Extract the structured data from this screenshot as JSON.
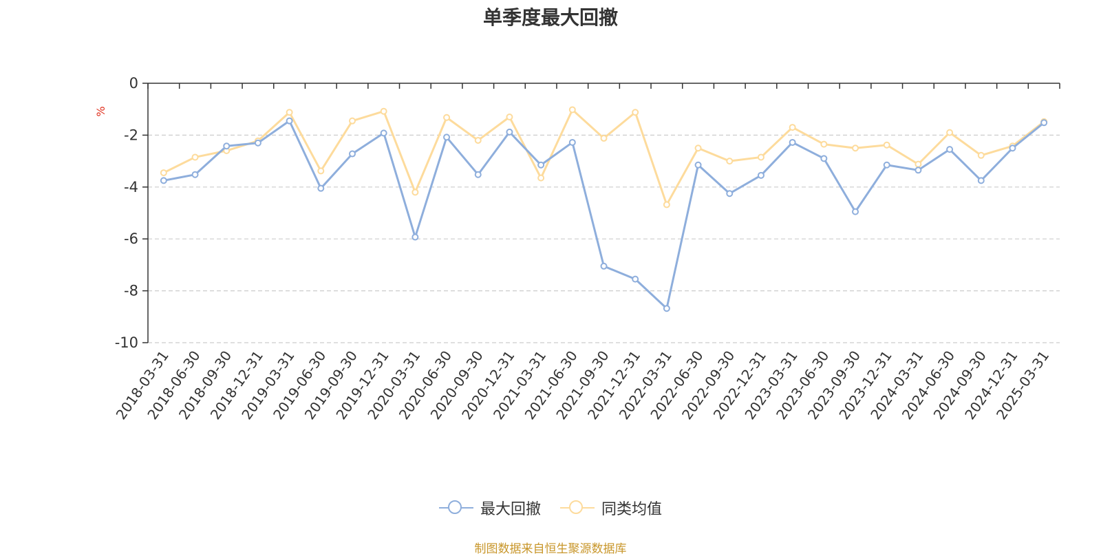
{
  "title": "单季度最大回撤",
  "source_note": "制图数据来自恒生聚源数据库",
  "colors": {
    "series1": "#8eaedc",
    "series2": "#fddb9c",
    "unit": "#e0301e",
    "source": "#c8962a"
  },
  "chart_data": {
    "type": "line",
    "title": "单季度最大回撤",
    "ylabel": "%",
    "ylim": [
      -10,
      0
    ],
    "yticks": [
      0,
      -2,
      -4,
      -6,
      -8,
      -10
    ],
    "grid": true,
    "legend_position": "bottom-center",
    "categories": [
      "2018-03-31",
      "2018-06-30",
      "2018-09-30",
      "2018-12-31",
      "2019-03-31",
      "2019-06-30",
      "2019-09-30",
      "2019-12-31",
      "2020-03-31",
      "2020-06-30",
      "2020-09-30",
      "2020-12-31",
      "2021-03-31",
      "2021-06-30",
      "2021-09-30",
      "2021-12-31",
      "2022-03-31",
      "2022-06-30",
      "2022-09-30",
      "2022-12-31",
      "2023-03-31",
      "2023-06-30",
      "2023-09-30",
      "2023-12-31",
      "2024-03-31",
      "2024-06-30",
      "2024-09-30",
      "2024-12-31",
      "2025-03-31"
    ],
    "series": [
      {
        "name": "最大回撤",
        "values": [
          -3.75,
          -3.52,
          -2.42,
          -2.3,
          -1.45,
          -4.05,
          -2.72,
          -1.92,
          -5.93,
          -2.08,
          -3.52,
          -1.88,
          -3.15,
          -2.28,
          -7.05,
          -7.55,
          -8.68,
          -3.15,
          -4.25,
          -3.55,
          -2.28,
          -2.9,
          -4.95,
          -3.15,
          -3.35,
          -2.55,
          -3.75,
          -2.5,
          -1.52
        ]
      },
      {
        "name": "同类均值",
        "values": [
          -3.45,
          -2.85,
          -2.6,
          -2.22,
          -1.12,
          -3.38,
          -1.45,
          -1.08,
          -4.2,
          -1.32,
          -2.2,
          -1.3,
          -3.65,
          -1.02,
          -2.12,
          -1.12,
          -4.68,
          -2.5,
          -3.0,
          -2.85,
          -1.7,
          -2.35,
          -2.5,
          -2.38,
          -3.12,
          -1.9,
          -2.78,
          -2.42,
          -1.48
        ]
      }
    ]
  }
}
